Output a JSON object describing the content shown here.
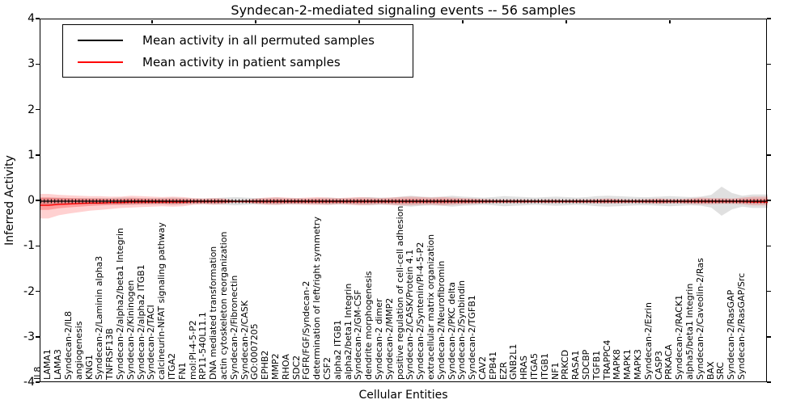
{
  "chart_data": {
    "type": "line",
    "title": "Syndecan-2-mediated signaling events -- 56 samples",
    "xlabel": "Cellular Entities",
    "ylabel": "Inferred Activity",
    "ylim": [
      -4,
      4
    ],
    "yticks": [
      4,
      3,
      2,
      1,
      0,
      -1,
      -2,
      -3,
      -4
    ],
    "ytick_labels": [
      "4",
      "3",
      "2",
      "1",
      "0",
      "-1",
      "-2",
      "-3",
      "-4"
    ],
    "grid": false,
    "legend_position": "upper left",
    "legend": [
      {
        "label": "Mean activity in all permuted samples",
        "color": "#000000"
      },
      {
        "label": "Mean activity in patient samples",
        "color": "#ff0000"
      }
    ],
    "categories": [
      "IL8",
      "LAMA1",
      "LAMA3",
      "Syndecan-2/IL8",
      "angiogenesis",
      "KNG1",
      "Syndecan-2/Laminin alpha3",
      "TNFRSF13B",
      "Syndecan-2/alpha2/beta1 Integrin",
      "Syndecan-2/Kininogen",
      "Syndecan-2/alpha2 ITGB1",
      "Syndecan-2/TACI",
      "calcineurin-NFAT signaling pathway",
      "ITGA2",
      "FN1",
      "mol:PI-4-5-P2",
      "RP11-540L11.1",
      "DNA mediated transformation",
      "actin cytoskeleton reorganization",
      "Syndecan-2/Fibronectin",
      "Syndecan-2/CASK",
      "GO:0007205",
      "EPHB2",
      "MMP2",
      "RHOA",
      "SDC2",
      "FGFR/FGF/Syndecan-2",
      "determination of left/right symmetry",
      "CSF2",
      "alpha2 ITGB1",
      "alpha2/beta1 Integrin",
      "Syndecan-2/GM-CSF",
      "dendrite morphogenesis",
      "Syndecan-2 dimer",
      "Syndecan-2/MMP2",
      "positive regulation of cell-cell adhesion",
      "Syndecan-2/CASK/Protein 4.1",
      "Syndecan-2/Syntenin/PI-4-5-P2",
      "extracellular matrix organization",
      "Syndecan-2/Neurofibromin",
      "Syndecan-2/PKC delta",
      "Syndecan-2/Synbindin",
      "Syndecan-2/TGFB1",
      "CAV2",
      "EPB41",
      "EZR",
      "GNB2L1",
      "HRAS",
      "ITGA5",
      "ITGB1",
      "NF1",
      "PRKCD",
      "RASA1",
      "SDCBP",
      "TGFB1",
      "TRAPPC4",
      "MAPK8",
      "MAPK1",
      "MAPK3",
      "Syndecan-2/Ezrin",
      "CASP3",
      "PRKACA",
      "Syndecan-2/RACK1",
      "alpha5/beta1 Integrin",
      "Syndecan-2/Caveolin-2/Ras",
      "BAX",
      "SRC",
      "Syndecan-2/RasGAP",
      "Syndecan-2/RasGAP/Src"
    ],
    "series": [
      {
        "name": "Mean activity in all permuted samples",
        "color": "#000000",
        "values": [
          0,
          0,
          0,
          0,
          0,
          0,
          0,
          0,
          0,
          0,
          0,
          0,
          0,
          0,
          0,
          0,
          0,
          0,
          0,
          0,
          0,
          0,
          0,
          0,
          0,
          0,
          0,
          0,
          0,
          0,
          0,
          0,
          0,
          0,
          0,
          0,
          0,
          0,
          0,
          0,
          0,
          0,
          0,
          0,
          0,
          0,
          0,
          0,
          0,
          0,
          0,
          0,
          0,
          0,
          0,
          0,
          0,
          0,
          0,
          0,
          0,
          0,
          0,
          0,
          0,
          0,
          0,
          0,
          0
        ]
      },
      {
        "name": "Mean activity in patient samples",
        "color": "#ff0000",
        "values": [
          -0.09,
          -0.07,
          -0.06,
          -0.05,
          -0.04,
          -0.04,
          -0.03,
          -0.03,
          -0.02,
          -0.02,
          -0.02,
          -0.02,
          -0.02,
          -0.02,
          -0.01,
          -0.01,
          -0.01,
          -0.01,
          -0.01,
          -0.01,
          -0.01,
          -0.01,
          -0.01,
          -0.01,
          -0.01,
          -0.01,
          -0.01,
          -0.01,
          -0.01,
          -0.01,
          -0.01,
          -0.01,
          -0.01,
          -0.01,
          -0.01,
          -0.01,
          -0.01,
          -0.01,
          -0.01,
          -0.01,
          -0.01,
          -0.01,
          -0.01,
          -0.01,
          -0.01,
          -0.01,
          -0.01,
          -0.01,
          -0.01,
          -0.01,
          -0.01,
          -0.01,
          -0.01,
          -0.01,
          -0.01,
          -0.01,
          -0.01,
          -0.01,
          -0.01,
          -0.01,
          -0.01,
          -0.01,
          -0.01,
          -0.01,
          -0.01,
          -0.01,
          -0.01,
          -0.01,
          -0.02
        ]
      }
    ],
    "bands": [
      {
        "name": "permuted samples std band",
        "color": "#000000",
        "opacity": 0.12,
        "upper": [
          0.08,
          0.08,
          0.07,
          0.07,
          0.07,
          0.07,
          0.07,
          0.08,
          0.08,
          0.07,
          0.07,
          0.07,
          0.08,
          0.07,
          0.06,
          0.06,
          0.07,
          0.08,
          0.09,
          0.08,
          0.07,
          0.07,
          0.08,
          0.07,
          0.07,
          0.06,
          0.07,
          0.08,
          0.07,
          0.07,
          0.08,
          0.09,
          0.08,
          0.08,
          0.1,
          0.12,
          0.1,
          0.09,
          0.1,
          0.12,
          0.1,
          0.09,
          0.08,
          0.09,
          0.11,
          0.1,
          0.09,
          0.08,
          0.09,
          0.1,
          0.09,
          0.08,
          0.09,
          0.11,
          0.12,
          0.11,
          0.1,
          0.09,
          0.09,
          0.1,
          0.11,
          0.1,
          0.09,
          0.1,
          0.14,
          0.32,
          0.18,
          0.12,
          0.15
        ],
        "lower": [
          -0.08,
          -0.08,
          -0.07,
          -0.07,
          -0.07,
          -0.07,
          -0.07,
          -0.08,
          -0.08,
          -0.07,
          -0.07,
          -0.07,
          -0.08,
          -0.07,
          -0.06,
          -0.06,
          -0.07,
          -0.08,
          -0.09,
          -0.08,
          -0.07,
          -0.07,
          -0.08,
          -0.07,
          -0.07,
          -0.06,
          -0.07,
          -0.08,
          -0.07,
          -0.07,
          -0.08,
          -0.09,
          -0.08,
          -0.08,
          -0.1,
          -0.12,
          -0.1,
          -0.09,
          -0.1,
          -0.12,
          -0.1,
          -0.09,
          -0.08,
          -0.09,
          -0.11,
          -0.1,
          -0.09,
          -0.08,
          -0.09,
          -0.1,
          -0.09,
          -0.08,
          -0.09,
          -0.11,
          -0.12,
          -0.11,
          -0.1,
          -0.09,
          -0.09,
          -0.1,
          -0.11,
          -0.1,
          -0.09,
          -0.1,
          -0.14,
          -0.32,
          -0.18,
          -0.12,
          -0.15
        ]
      },
      {
        "name": "patient samples std band",
        "color": "#ff0000",
        "opacity": 0.18,
        "upper": [
          0.16,
          0.14,
          0.13,
          0.12,
          0.11,
          0.11,
          0.1,
          0.1,
          0.12,
          0.11,
          0.1,
          0.09,
          0.1,
          0.09,
          0.07,
          0.06,
          0.07,
          0.06,
          0.02,
          0.03,
          0.06,
          0.08,
          0.09,
          0.08,
          0.07,
          0.08,
          0.09,
          0.08,
          0.07,
          0.08,
          0.09,
          0.08,
          0.07,
          0.08,
          0.09,
          0.1,
          0.09,
          0.08,
          0.09,
          0.08,
          0.07,
          0.06,
          0.05,
          0.04,
          0.04,
          0.04,
          0.04,
          0.03,
          0.04,
          0.04,
          0.03,
          0.04,
          0.04,
          0.05,
          0.06,
          0.05,
          0.04,
          0.04,
          0.05,
          0.06,
          0.05,
          0.05,
          0.06,
          0.08,
          0.07,
          0.07,
          0.06,
          0.08,
          0.1
        ],
        "lower": [
          -0.38,
          -0.31,
          -0.27,
          -0.24,
          -0.21,
          -0.19,
          -0.17,
          -0.15,
          -0.14,
          -0.13,
          -0.12,
          -0.11,
          -0.12,
          -0.11,
          -0.08,
          -0.07,
          -0.08,
          -0.06,
          -0.02,
          -0.03,
          -0.06,
          -0.08,
          -0.08,
          -0.07,
          -0.07,
          -0.08,
          -0.08,
          -0.08,
          -0.07,
          -0.08,
          -0.09,
          -0.08,
          -0.07,
          -0.08,
          -0.09,
          -0.09,
          -0.08,
          -0.08,
          -0.09,
          -0.08,
          -0.07,
          -0.06,
          -0.05,
          -0.04,
          -0.04,
          -0.04,
          -0.04,
          -0.03,
          -0.04,
          -0.04,
          -0.03,
          -0.04,
          -0.04,
          -0.05,
          -0.05,
          -0.05,
          -0.04,
          -0.04,
          -0.05,
          -0.06,
          -0.05,
          -0.05,
          -0.06,
          -0.07,
          -0.07,
          -0.06,
          -0.06,
          -0.07,
          -0.09
        ]
      }
    ]
  }
}
